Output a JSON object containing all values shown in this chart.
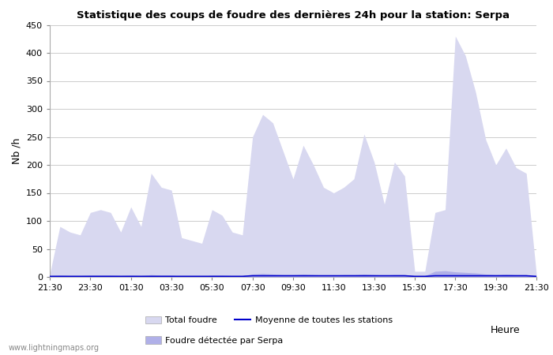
{
  "title": "Statistique des coups de foudre des dernières 24h pour la station: Serpa",
  "xlabel": "Heure",
  "ylabel": "Nb /h",
  "xlim_labels": [
    "21:30",
    "23:30",
    "01:30",
    "03:30",
    "05:30",
    "07:30",
    "09:30",
    "11:30",
    "13:30",
    "15:30",
    "17:30",
    "19:30",
    "21:30"
  ],
  "ylim": [
    0,
    450
  ],
  "yticks": [
    0,
    50,
    100,
    150,
    200,
    250,
    300,
    350,
    400,
    450
  ],
  "background_color": "#ffffff",
  "grid_color": "#cccccc",
  "fill_total_color": "#d8d8f0",
  "fill_serpa_color": "#b0b0e8",
  "line_moyenne_color": "#0000cc",
  "watermark": "www.lightningmaps.org",
  "legend_total": "Total foudre",
  "legend_serpa": "Foudre détectée par Serpa",
  "legend_moyenne": "Moyenne de toutes les stations",
  "x_values": [
    0,
    1,
    2,
    3,
    4,
    5,
    6,
    7,
    8,
    9,
    10,
    11,
    12,
    13,
    14,
    15,
    16,
    17,
    18,
    19,
    20,
    21,
    22,
    23,
    24,
    25,
    26,
    27,
    28,
    29,
    30,
    31,
    32,
    33,
    34,
    35,
    36,
    37,
    38,
    39,
    40,
    41,
    42,
    43,
    44,
    45,
    46,
    47,
    48
  ],
  "total_foudre": [
    5,
    90,
    80,
    75,
    115,
    120,
    115,
    80,
    125,
    90,
    185,
    160,
    155,
    70,
    65,
    60,
    120,
    110,
    80,
    75,
    250,
    290,
    275,
    225,
    175,
    235,
    200,
    160,
    150,
    160,
    175,
    255,
    205,
    130,
    205,
    180,
    10,
    10,
    115,
    120,
    430,
    395,
    330,
    245,
    200,
    230,
    195,
    185,
    5
  ],
  "serpa_foudre": [
    2,
    3,
    2,
    2,
    3,
    3,
    3,
    2,
    3,
    2,
    4,
    3,
    3,
    1,
    2,
    1,
    3,
    3,
    2,
    2,
    5,
    6,
    5,
    4,
    4,
    5,
    4,
    3,
    3,
    4,
    4,
    5,
    4,
    3,
    4,
    4,
    2,
    2,
    10,
    11,
    9,
    8,
    7,
    5,
    4,
    5,
    4,
    4,
    1
  ],
  "moyenne_foudre": [
    1,
    1,
    1,
    1,
    1,
    1,
    1,
    1,
    1,
    1,
    1,
    1,
    1,
    1,
    1,
    1,
    1,
    1,
    1,
    1,
    2,
    2,
    2,
    2,
    2,
    2,
    2,
    2,
    2,
    2,
    2,
    2,
    2,
    2,
    2,
    2,
    1,
    1,
    2,
    2,
    2,
    2,
    2,
    2,
    2,
    2,
    2,
    2,
    1
  ]
}
